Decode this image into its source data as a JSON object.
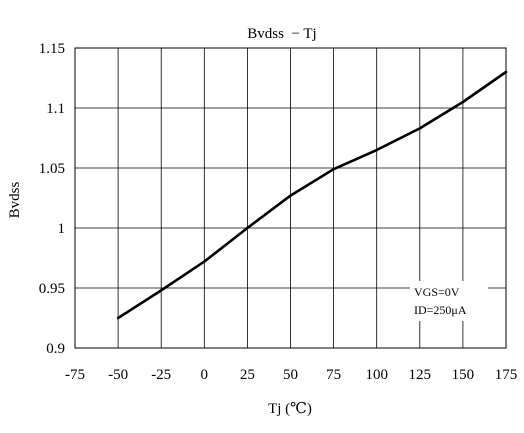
{
  "chart_data": {
    "type": "line",
    "title": "Bvdss  − Tj",
    "xlabel": "Tj (℃)",
    "ylabel": "Bvdss",
    "xlim": [
      -75,
      175
    ],
    "ylim": [
      0.9,
      1.15
    ],
    "x_ticks": [
      -75,
      -50,
      -25,
      0,
      25,
      50,
      75,
      100,
      125,
      150,
      175
    ],
    "y_ticks": [
      0.9,
      0.95,
      1,
      1.05,
      1.1,
      1.15
    ],
    "x_tick_labels": [
      "-75",
      "-50",
      "-25",
      "0",
      "25",
      "50",
      "75",
      "100",
      "125",
      "150",
      "175"
    ],
    "y_tick_labels": [
      "0.9",
      "0.95",
      "1",
      "1.05",
      "1.1",
      "1.15"
    ],
    "grid": true,
    "annotations": [
      "VGS=0V",
      "ID=250μA"
    ],
    "series": [
      {
        "color": "#000000",
        "x": [
          -50,
          -25,
          0,
          25,
          50,
          75,
          100,
          125,
          150,
          175
        ],
        "y": [
          0.925,
          0.948,
          0.972,
          1.0,
          1.027,
          1.049,
          1.065,
          1.083,
          1.105,
          1.13
        ]
      }
    ]
  }
}
